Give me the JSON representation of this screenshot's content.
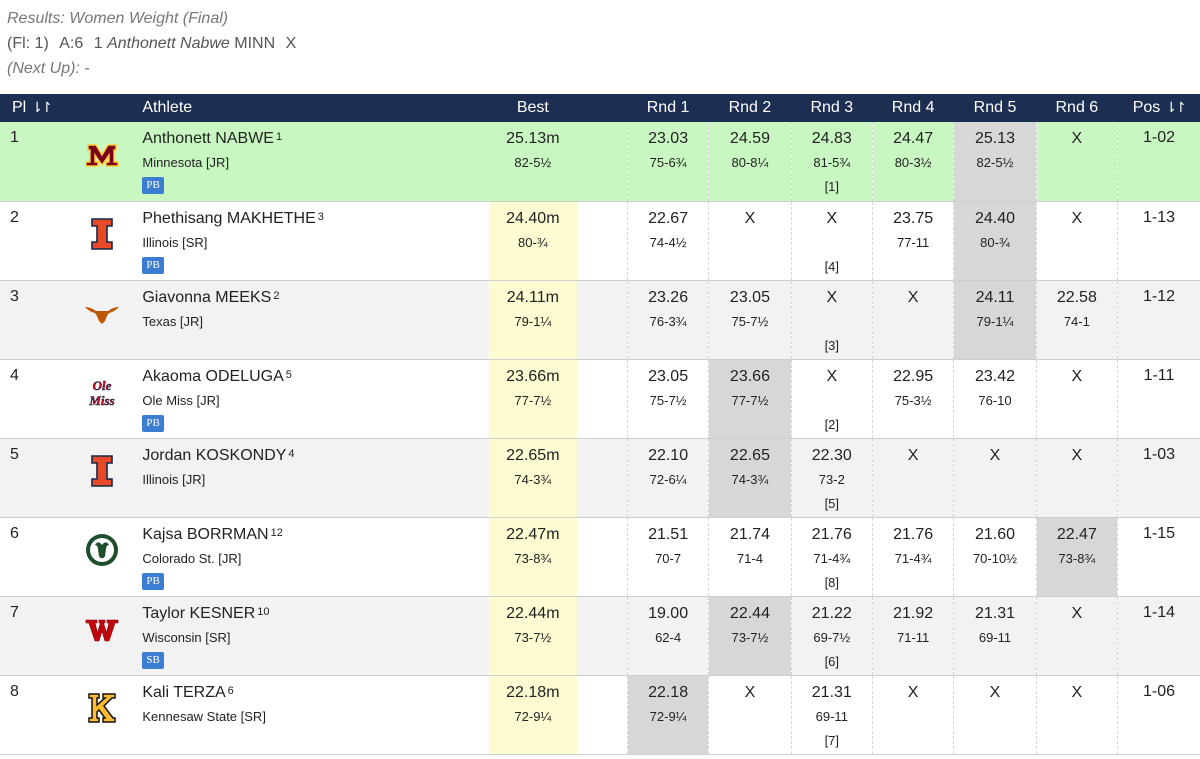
{
  "header": {
    "title": "Results: Women Weight (Final)",
    "flight_label": "(Fl: 1)",
    "attempt_label": "A:6",
    "current_order": "1",
    "current_athlete": "Anthonett Nabwe",
    "current_team": "MINN",
    "current_result": "X",
    "next_up_label": "(Next Up):",
    "next_up_value": "-"
  },
  "columns": {
    "place": "Pl",
    "place_sort": "⇂↾",
    "athlete": "Athlete",
    "best": "Best",
    "rnd1": "Rnd 1",
    "rnd2": "Rnd 2",
    "rnd3": "Rnd 3",
    "rnd4": "Rnd 4",
    "rnd5": "Rnd 5",
    "rnd6": "Rnd 6",
    "pos": "Pos",
    "pos_sort": "⇂↾"
  },
  "colors": {
    "header_bg": "#1c2e52",
    "leader_row": "#c9f7c1",
    "best_cell": "#fdfbd1",
    "best_attempt": "#d7d7d7",
    "badge": "#3b7dd0"
  },
  "rows": [
    {
      "place": "1",
      "logo": "minnesota-logo",
      "name": "Anthonett NABWE",
      "seed": "1",
      "team": "Minnesota [JR]",
      "badge": "PB",
      "best": {
        "m": "25.13m",
        "i": "82-5½"
      },
      "rounds": [
        {
          "m": "23.03",
          "i": "75-6¾"
        },
        {
          "m": "24.59",
          "i": "80-8¼"
        },
        {
          "m": "24.83",
          "i": "81-5¾",
          "r": "[1]"
        },
        {
          "m": "24.47",
          "i": "80-3½"
        },
        {
          "m": "25.13",
          "i": "82-5½"
        },
        {
          "m": "X"
        }
      ],
      "pos": "1-02"
    },
    {
      "place": "2",
      "logo": "illinois-logo",
      "name": "Phethisang MAKHETHE",
      "seed": "3",
      "team": "Illinois [SR]",
      "badge": "PB",
      "best": {
        "m": "24.40m",
        "i": "80-¾"
      },
      "rounds": [
        {
          "m": "22.67",
          "i": "74-4½"
        },
        {
          "m": "X"
        },
        {
          "m": "X",
          "r": "[4]"
        },
        {
          "m": "23.75",
          "i": "77-11"
        },
        {
          "m": "24.40",
          "i": "80-¾"
        },
        {
          "m": "X"
        }
      ],
      "pos": "1-13"
    },
    {
      "place": "3",
      "logo": "texas-logo",
      "name": "Giavonna MEEKS",
      "seed": "2",
      "team": "Texas [JR]",
      "badge": "",
      "best": {
        "m": "24.11m",
        "i": "79-1¼"
      },
      "rounds": [
        {
          "m": "23.26",
          "i": "76-3¾"
        },
        {
          "m": "23.05",
          "i": "75-7½"
        },
        {
          "m": "X",
          "r": "[3]"
        },
        {
          "m": "X"
        },
        {
          "m": "24.11",
          "i": "79-1¼"
        },
        {
          "m": "22.58",
          "i": "74-1"
        }
      ],
      "pos": "1-12"
    },
    {
      "place": "4",
      "logo": "ole-miss-logo",
      "name": "Akaoma ODELUGA",
      "seed": "5",
      "team": "Ole Miss [JR]",
      "badge": "PB",
      "best": {
        "m": "23.66m",
        "i": "77-7½"
      },
      "rounds": [
        {
          "m": "23.05",
          "i": "75-7½"
        },
        {
          "m": "23.66",
          "i": "77-7½"
        },
        {
          "m": "X",
          "r": "[2]"
        },
        {
          "m": "22.95",
          "i": "75-3½"
        },
        {
          "m": "23.42",
          "i": "76-10"
        },
        {
          "m": "X"
        }
      ],
      "pos": "1-11"
    },
    {
      "place": "5",
      "logo": "illinois-logo",
      "name": "Jordan KOSKONDY",
      "seed": "4",
      "team": "Illinois [JR]",
      "badge": "",
      "best": {
        "m": "22.65m",
        "i": "74-3¾"
      },
      "rounds": [
        {
          "m": "22.10",
          "i": "72-6¼"
        },
        {
          "m": "22.65",
          "i": "74-3¾"
        },
        {
          "m": "22.30",
          "i": "73-2",
          "r": "[5]"
        },
        {
          "m": "X"
        },
        {
          "m": "X"
        },
        {
          "m": "X"
        }
      ],
      "pos": "1-03"
    },
    {
      "place": "6",
      "logo": "colorado-state-logo",
      "name": "Kajsa BORRMAN",
      "seed": "12",
      "team": "Colorado St. [JR]",
      "badge": "PB",
      "best": {
        "m": "22.47m",
        "i": "73-8¾"
      },
      "rounds": [
        {
          "m": "21.51",
          "i": "70-7"
        },
        {
          "m": "21.74",
          "i": "71-4"
        },
        {
          "m": "21.76",
          "i": "71-4¾",
          "r": "[8]"
        },
        {
          "m": "21.76",
          "i": "71-4¾"
        },
        {
          "m": "21.60",
          "i": "70-10½"
        },
        {
          "m": "22.47",
          "i": "73-8¾"
        }
      ],
      "pos": "1-15"
    },
    {
      "place": "7",
      "logo": "wisconsin-logo",
      "name": "Taylor KESNER",
      "seed": "10",
      "team": "Wisconsin [SR]",
      "badge": "SB",
      "best": {
        "m": "22.44m",
        "i": "73-7½"
      },
      "rounds": [
        {
          "m": "19.00",
          "i": "62-4"
        },
        {
          "m": "22.44",
          "i": "73-7½"
        },
        {
          "m": "21.22",
          "i": "69-7½",
          "r": "[6]"
        },
        {
          "m": "21.92",
          "i": "71-11"
        },
        {
          "m": "21.31",
          "i": "69-11"
        },
        {
          "m": "X"
        }
      ],
      "pos": "1-14"
    },
    {
      "place": "8",
      "logo": "kennesaw-state-logo",
      "name": "Kali TERZA",
      "seed": "6",
      "team": "Kennesaw State [SR]",
      "badge": "",
      "best": {
        "m": "22.18m",
        "i": "72-9¼"
      },
      "rounds": [
        {
          "m": "22.18",
          "i": "72-9¼"
        },
        {
          "m": "X"
        },
        {
          "m": "21.31",
          "i": "69-11",
          "r": "[7]"
        },
        {
          "m": "X"
        },
        {
          "m": "X"
        },
        {
          "m": "X"
        }
      ],
      "pos": "1-06"
    }
  ]
}
